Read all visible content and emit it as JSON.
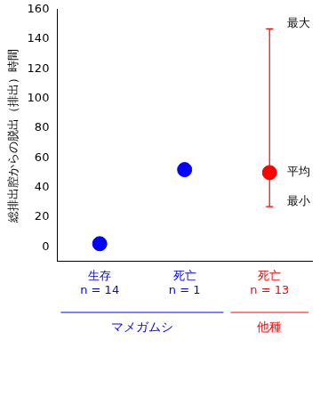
{
  "chart_data": {
    "type": "scatter",
    "y_label": "総排出腔からの脱出（排出）時間",
    "categories": [
      "生存",
      "死亡",
      "死亡"
    ],
    "sample_sizes": [
      "n = 14",
      "n = 1",
      "n = 13"
    ],
    "groups": [
      "マメガムシ",
      "マメガムシ",
      "他種"
    ],
    "values": [
      2,
      52,
      50
    ],
    "colors": [
      "#0000ff",
      "#0000ff",
      "#ff0000"
    ],
    "error_bars": [
      null,
      null,
      {
        "min": 27,
        "max": 147
      }
    ],
    "error_labels": {
      "max": "最大",
      "mean": "平均",
      "min": "最小"
    },
    "marker": "circle",
    "ylim": [
      -10,
      160
    ],
    "yticks": [
      0,
      20,
      40,
      60,
      80,
      100,
      120,
      140,
      160
    ],
    "grid": false
  }
}
